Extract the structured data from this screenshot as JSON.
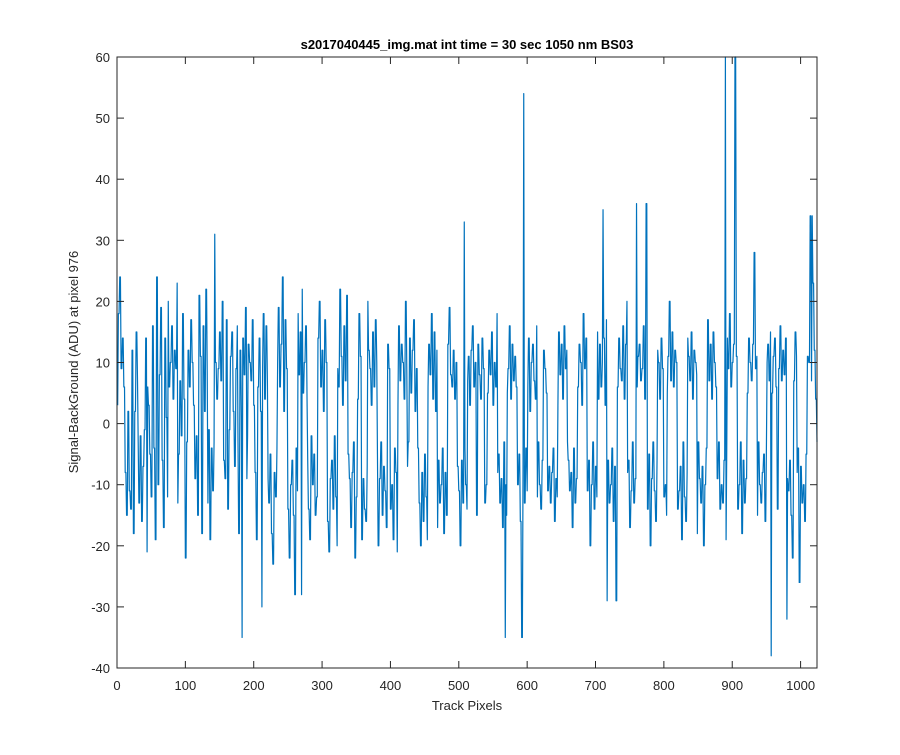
{
  "chart_data": {
    "type": "line",
    "title": "s2017040445_img.mat int time = 30 sec  1050 nm BS03",
    "xlabel": "Track Pixels",
    "ylabel": "Signal-BackGround (ADU) at pixel 976",
    "xlim": [
      0,
      1024
    ],
    "ylim": [
      -40,
      60
    ],
    "xticks": [
      0,
      100,
      200,
      300,
      400,
      500,
      600,
      700,
      800,
      900,
      1000
    ],
    "yticks": [
      -40,
      -30,
      -20,
      -10,
      0,
      10,
      20,
      30,
      40,
      50,
      60
    ],
    "grid": false,
    "series": [
      {
        "color": "#0072BD",
        "x_start": 1,
        "x_step": 1,
        "notable_points": [
          {
            "x": 5,
            "y": 24
          },
          {
            "x": 143,
            "y": 31
          },
          {
            "x": 183,
            "y": -35
          },
          {
            "x": 212,
            "y": -30
          },
          {
            "x": 270,
            "y": -28
          },
          {
            "x": 508,
            "y": 33
          },
          {
            "x": 568,
            "y": -35
          },
          {
            "x": 595,
            "y": 54
          },
          {
            "x": 717,
            "y": -29
          },
          {
            "x": 711,
            "y": 35
          },
          {
            "x": 760,
            "y": 36
          },
          {
            "x": 890,
            "y": 60
          },
          {
            "x": 957,
            "y": -38
          },
          {
            "x": 980,
            "y": -32
          },
          {
            "x": 1017,
            "y": 34
          }
        ],
        "y": [
          3,
          18,
          -12,
          24,
          -19,
          9,
          -3,
          14,
          -25,
          6,
          20,
          -8,
          11,
          -15,
          2,
          17,
          -11,
          5,
          -14,
          8,
          12,
          -6,
          -18,
          10,
          2,
          -9,
          15,
          -3,
          7,
          -13,
          20,
          -2,
          4,
          -16,
          9,
          -7,
          11,
          -1,
          -10,
          14,
          6,
          -21,
          3,
          18,
          -5,
          9,
          -12,
          0,
          16,
          -8,
          -4,
          13,
          -19,
          7,
          24,
          -10,
          2,
          8,
          -14,
          19,
          -3,
          -6,
          11,
          -17,
          5,
          14,
          -9,
          1,
          20,
          -12,
          6,
          -3,
          10,
          -20,
          16,
          -8,
          4,
          -15,
          12,
          -1,
          9,
          -13,
          23,
          -5,
          -18,
          7,
          13,
          -2,
          -11,
          18,
          -7,
          4,
          15,
          -22,
          9,
          -3,
          12,
          -8,
          6,
          -26,
          17,
          -4,
          10,
          -12,
          3,
          19,
          -9,
          14,
          -2,
          -15,
          8,
          21,
          -6,
          11,
          -3,
          -18,
          5,
          16,
          -10,
          2,
          -7,
          22,
          -13,
          8,
          -1,
          14,
          -19,
          6,
          -4,
          12,
          -11,
          18,
          -3,
          -8,
          10,
          -16,
          4,
          9,
          -23,
          15,
          -2,
          7,
          -12,
          20,
          31,
          -6,
          12,
          -9,
          3,
          17,
          -14,
          8,
          -1,
          -20,
          11,
          -5,
          15,
          -9,
          2,
          26,
          -7,
          -13,
          9,
          -3,
          16,
          -18,
          5,
          12,
          -10,
          1,
          -22,
          14,
          -6,
          8,
          -15,
          19,
          -2,
          -9,
          13,
          -25,
          10,
          -4,
          7,
          -35,
          17,
          -12,
          3,
          11,
          -8,
          22,
          -19,
          6,
          -3,
          14,
          -11,
          2,
          -17,
          9,
          -6,
          18,
          -14,
          4,
          -30,
          16,
          -9,
          7,
          -13,
          21,
          -5,
          11,
          -18,
          3,
          -23,
          15,
          -8,
          25,
          -12,
          10,
          -4,
          19,
          -21,
          6,
          -16,
          13,
          -7,
          24,
          -11,
          2,
          -19,
          17,
          -5,
          9,
          -14,
          23,
          -22,
          7,
          -10,
          14,
          -6,
          20,
          -15,
          3,
          -28,
          12,
          -4,
          18,
          -11,
          8,
          -20,
          15,
          -3,
          22,
          -13,
          5,
          -17,
          10,
          -9,
          16,
          -6,
          4,
          -14,
          11,
          -19,
          7,
          -2,
          13,
          -10,
          18,
          -5,
          9,
          -15,
          3,
          -12,
          14,
          -8,
          20,
          -4,
          6,
          -18,
          12,
          -11,
          2,
          -7,
          17,
          -3,
          10,
          -16,
          5,
          -21,
          13,
          -9,
          19,
          -6,
          8,
          -14,
          4,
          -2,
          15,
          -12,
          9,
          -20,
          6,
          -7,
          22,
          -15,
          11,
          -4,
          3,
          -18,
          16,
          -10,
          7,
          -13,
          21,
          -5,
          12,
          -9,
          2,
          -17,
          14,
          -8,
          19,
          -3,
          6,
          -22,
          10,
          -12,
          4,
          -15,
          18,
          -6,
          11,
          -2,
          -19,
          13,
          -9,
          7,
          -14,
          5,
          -16,
          20,
          -7,
          12,
          -4,
          9,
          -11,
          3,
          -18,
          15,
          -8,
          6,
          -13,
          17,
          -5,
          10,
          -20,
          2,
          -9,
          14,
          -3,
          8,
          -15,
          12,
          -7,
          19,
          -11,
          4,
          -17,
          13,
          -6,
          9,
          -2,
          -14,
          18,
          -10,
          6,
          -19,
          11,
          -4,
          15,
          -8,
          3,
          -21,
          16,
          -12,
          7,
          -5,
          13,
          -9,
          10,
          -16,
          4,
          -13,
          20,
          -7,
          8,
          -3,
          -11,
          14,
          -18,
          5,
          -6,
          12,
          -9,
          17,
          -15,
          2,
          -10,
          9,
          -4,
          16,
          -13,
          7,
          -20,
          11,
          -8,
          3,
          -16,
          14,
          -5,
          10,
          -12,
          6,
          -19,
          13,
          -3,
          8,
          -14,
          18,
          -9,
          4,
          -11,
          15,
          -7,
          2,
          -17,
          12,
          -6,
          9,
          -13,
          5,
          -10,
          16,
          -4,
          11,
          -18,
          7,
          -8,
          3,
          -15,
          13,
          -12,
          19,
          -5,
          8,
          -14,
          6,
          -3,
          12,
          -9,
          4,
          -16,
          10,
          -7,
          14,
          -11,
          2,
          -20,
          15,
          -6,
          9,
          -13,
          5,
          -4,
          17,
          -10,
          7,
          -14,
          11,
          -8,
          3,
          -18,
          12,
          -5,
          16,
          -9,
          6,
          -12,
          10,
          -3,
          -15,
          13,
          -7,
          8,
          -11,
          4,
          -17,
          14,
          -6,
          9,
          -2,
          -13,
          33,
          -10,
          5,
          -16,
          12,
          -4,
          8,
          -19,
          15,
          -7,
          3,
          -11,
          10,
          -14,
          6,
          -8,
          18,
          -5,
          11,
          -13,
          2,
          -9,
          14,
          -17,
          7,
          -3,
          12,
          -10,
          5,
          -15,
          9,
          -6,
          16,
          -12,
          4,
          -8,
          13,
          -19,
          7,
          -2,
          11,
          -14,
          6,
          -10,
          15,
          -5,
          8,
          -16,
          3,
          -35,
          12,
          -7,
          9,
          -13,
          17,
          -4,
          6,
          -11,
          14,
          -8,
          2,
          -18,
          10,
          -5,
          13,
          -15,
          7,
          -9,
          4,
          -12,
          16,
          -3,
          11,
          -10,
          54,
          -14,
          8,
          -6,
          -19,
          12,
          -3,
          9,
          -15,
          5,
          -11,
          14,
          -7,
          2,
          -13,
          10,
          -8,
          17,
          -4,
          6,
          -16,
          11,
          -9,
          3,
          -12,
          15,
          -5,
          8,
          -18,
          13,
          -7,
          4,
          -10,
          16,
          -14,
          9,
          -3,
          12,
          -6,
          20,
          -11,
          5,
          -8,
          14,
          -17,
          7,
          -4,
          11,
          -13,
          22,
          -9,
          6,
          -15,
          13,
          -5,
          10,
          -12,
          3,
          -8,
          18,
          -16,
          9,
          -4,
          14,
          -11,
          7,
          -6,
          12,
          -20,
          5,
          -10,
          16,
          -3,
          11,
          -14,
          8,
          -7,
          15,
          -12,
          4,
          -9,
          13,
          -18,
          6,
          -5,
          10,
          -15,
          14,
          -8,
          3,
          -11,
          17,
          -6,
          9,
          -13,
          5,
          -10,
          12,
          -4,
          8,
          -16,
          35,
          -7,
          11,
          -29,
          6,
          -3,
          14,
          -12,
          9,
          -19,
          7,
          -5,
          16,
          -10,
          4,
          -14,
          13,
          -8,
          20,
          -6,
          10,
          -17,
          5,
          -11,
          15,
          -3,
          8,
          -13,
          22,
          -9,
          6,
          -15,
          11,
          -4,
          13,
          -18,
          7,
          -10,
          9,
          -6,
          16,
          -12,
          4,
          -8,
          36,
          -14,
          11,
          -5,
          7,
          -20,
          13,
          -9,
          6,
          -3,
          15,
          -11,
          8,
          -16,
          12,
          -6,
          10,
          -13,
          4,
          -18,
          14,
          -7,
          9,
          -2,
          -12,
          17,
          -10,
          5,
          -15,
          11,
          -8,
          20,
          -4,
          7,
          -13,
          15,
          -17,
          6,
          -9,
          12,
          -5,
          10,
          -14,
          3,
          -11,
          16,
          -7,
          8,
          -19,
          13,
          -3,
          9,
          -12,
          5,
          -16,
          14,
          -8,
          11,
          -29,
          7,
          -5,
          15,
          -11,
          4,
          -14,
          12,
          -6,
          10,
          -18,
          8,
          -3,
          16,
          -9,
          6,
          -13,
          11,
          -7,
          14,
          -20,
          5,
          -10,
          9,
          -4,
          17,
          -12,
          7,
          -15,
          13,
          -8,
          4,
          -11,
          15,
          -5,
          10,
          -17,
          6,
          -9,
          12,
          -3,
          8,
          -14,
          16,
          -10,
          5,
          -13,
          11,
          -6,
          7,
          -19,
          14,
          -4,
          9,
          -12,
          18,
          -7,
          6,
          -15,
          10,
          -27,
          13,
          -8,
          60,
          -5,
          11,
          -14,
          7,
          -10,
          15,
          -3,
          9,
          -18,
          12,
          -6,
          8,
          -13,
          16,
          -9,
          5,
          -11,
          14,
          -4,
          10,
          -17,
          7,
          -12,
          13,
          -21,
          28,
          -6,
          9,
          -15,
          11,
          -3,
          14,
          -10,
          6,
          -13,
          12,
          -8,
          17,
          -5,
          8,
          -16,
          10,
          -4,
          13,
          -11,
          7,
          -19,
          15,
          -7,
          5,
          -12,
          11,
          -9,
          14,
          -20,
          6,
          -14,
          -38,
          9,
          -3,
          16,
          -10,
          7,
          -13,
          12,
          -5,
          8,
          -17,
          14,
          -9,
          4,
          -11,
          13,
          -6,
          10,
          -15,
          18,
          -22,
          -32,
          7,
          -12,
          15,
          -8,
          11,
          -4,
          9,
          -26,
          14,
          -7,
          6,
          -13,
          12,
          -10,
          8,
          -16,
          15,
          -5,
          11,
          -9,
          10,
          -26,
          34,
          -3,
          7,
          -14,
          23,
          -8,
          12,
          -5,
          4,
          -3
        ]
      }
    ]
  }
}
